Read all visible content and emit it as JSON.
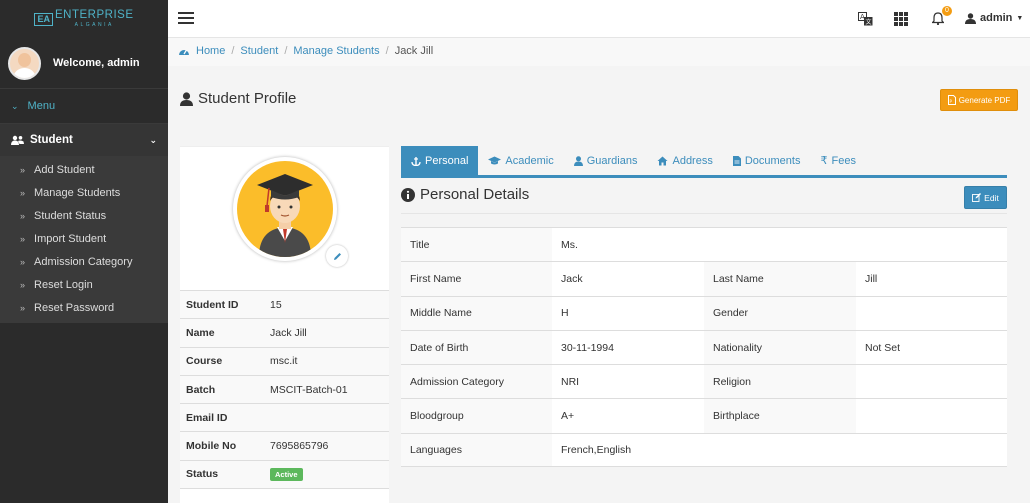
{
  "brand": {
    "logo_mark": "EA",
    "logo_main": "ENTERPRISE",
    "logo_sub": "ALGANIA"
  },
  "sidebar": {
    "welcome": "Welcome, admin",
    "menu_label": "Menu",
    "section": "Student",
    "items": [
      {
        "label": "Add Student"
      },
      {
        "label": "Manage Students"
      },
      {
        "label": "Student Status"
      },
      {
        "label": "Import Student"
      },
      {
        "label": "Admission Category"
      },
      {
        "label": "Reset Login"
      },
      {
        "label": "Reset Password"
      }
    ]
  },
  "topbar": {
    "notification_count": "0",
    "user": "admin"
  },
  "breadcrumb": {
    "home": "Home",
    "student": "Student",
    "manage": "Manage Students",
    "current": "Jack Jill"
  },
  "page": {
    "title": "Student Profile",
    "pdf_button": "Generate PDF"
  },
  "profile": {
    "rows": [
      {
        "key": "Student ID",
        "value": "15"
      },
      {
        "key": "Name",
        "value": "Jack Jill"
      },
      {
        "key": "Course",
        "value": "msc.it"
      },
      {
        "key": "Batch",
        "value": "MSCIT-Batch-01"
      },
      {
        "key": "Email ID",
        "value": ""
      },
      {
        "key": "Mobile No",
        "value": "7695865796"
      },
      {
        "key": "Status",
        "value": "Active"
      }
    ]
  },
  "tabs": [
    {
      "label": "Personal"
    },
    {
      "label": "Academic"
    },
    {
      "label": "Guardians"
    },
    {
      "label": "Address"
    },
    {
      "label": "Documents"
    },
    {
      "label": "Fees"
    }
  ],
  "details": {
    "title": "Personal Details",
    "edit_button": "Edit",
    "title_key": "Title",
    "title_value": "Ms.",
    "first_name_key": "First Name",
    "first_name": "Jack",
    "last_name_key": "Last Name",
    "last_name": "Jill",
    "middle_name_key": "Middle Name",
    "middle_name": "H",
    "gender_key": "Gender",
    "gender": "",
    "dob_key": "Date of Birth",
    "dob": "30-11-1994",
    "nationality_key": "Nationality",
    "nationality": "Not Set",
    "admission_key": "Admission Category",
    "admission": "NRI",
    "religion_key": "Religion",
    "religion": "",
    "blood_key": "Bloodgroup",
    "blood": "A+",
    "birthplace_key": "Birthplace",
    "birthplace": "",
    "languages_key": "Languages",
    "languages": "French,English"
  },
  "colors": {
    "accent": "#3c8dbc",
    "warning": "#f39c12",
    "success": "#5cb85c",
    "sidebar": "#2b2b2b"
  }
}
